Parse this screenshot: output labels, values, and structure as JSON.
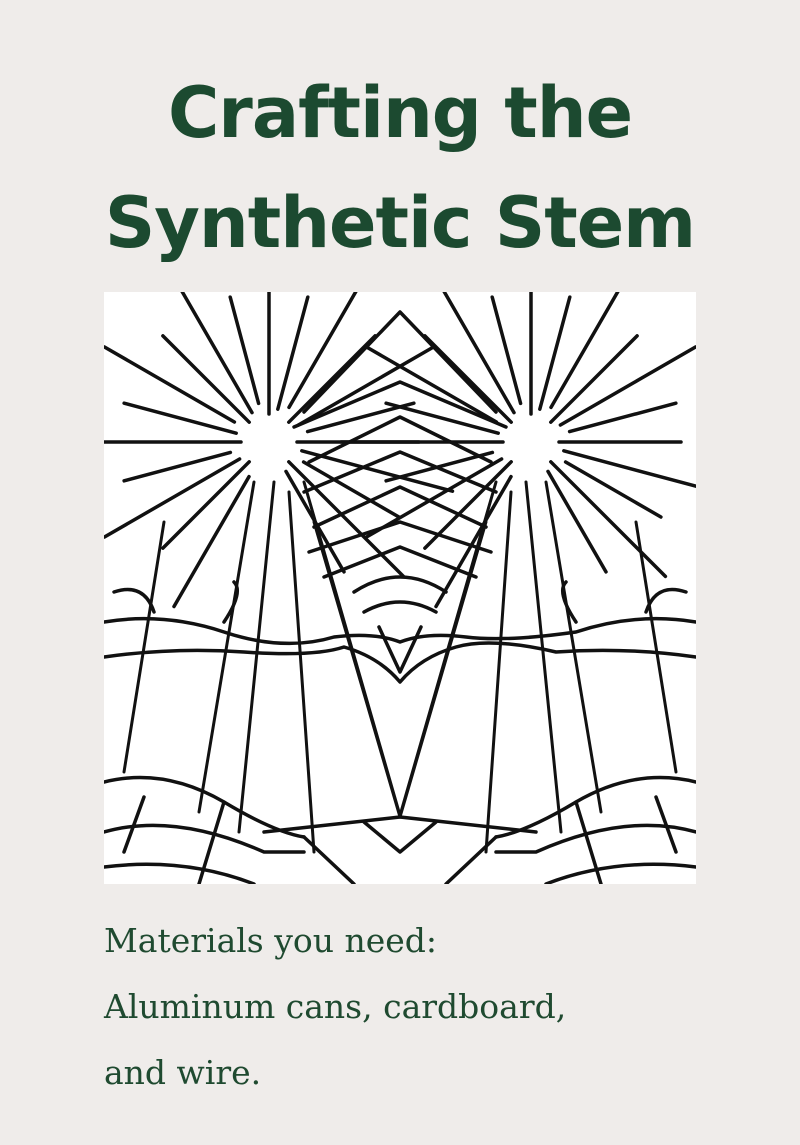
{
  "title": {
    "line1": "Crafting the",
    "line2": "Synthetic Stem"
  },
  "illustration": {
    "icon": "symmetric-line-art-icon"
  },
  "materials": {
    "line1": "Materials you need:",
    "line2": "Aluminum cans, cardboard,",
    "line3": "and wire."
  },
  "colors": {
    "background": "#efecea",
    "title": "#1c4a30",
    "body": "#1f4a30",
    "ink": "#111111"
  }
}
